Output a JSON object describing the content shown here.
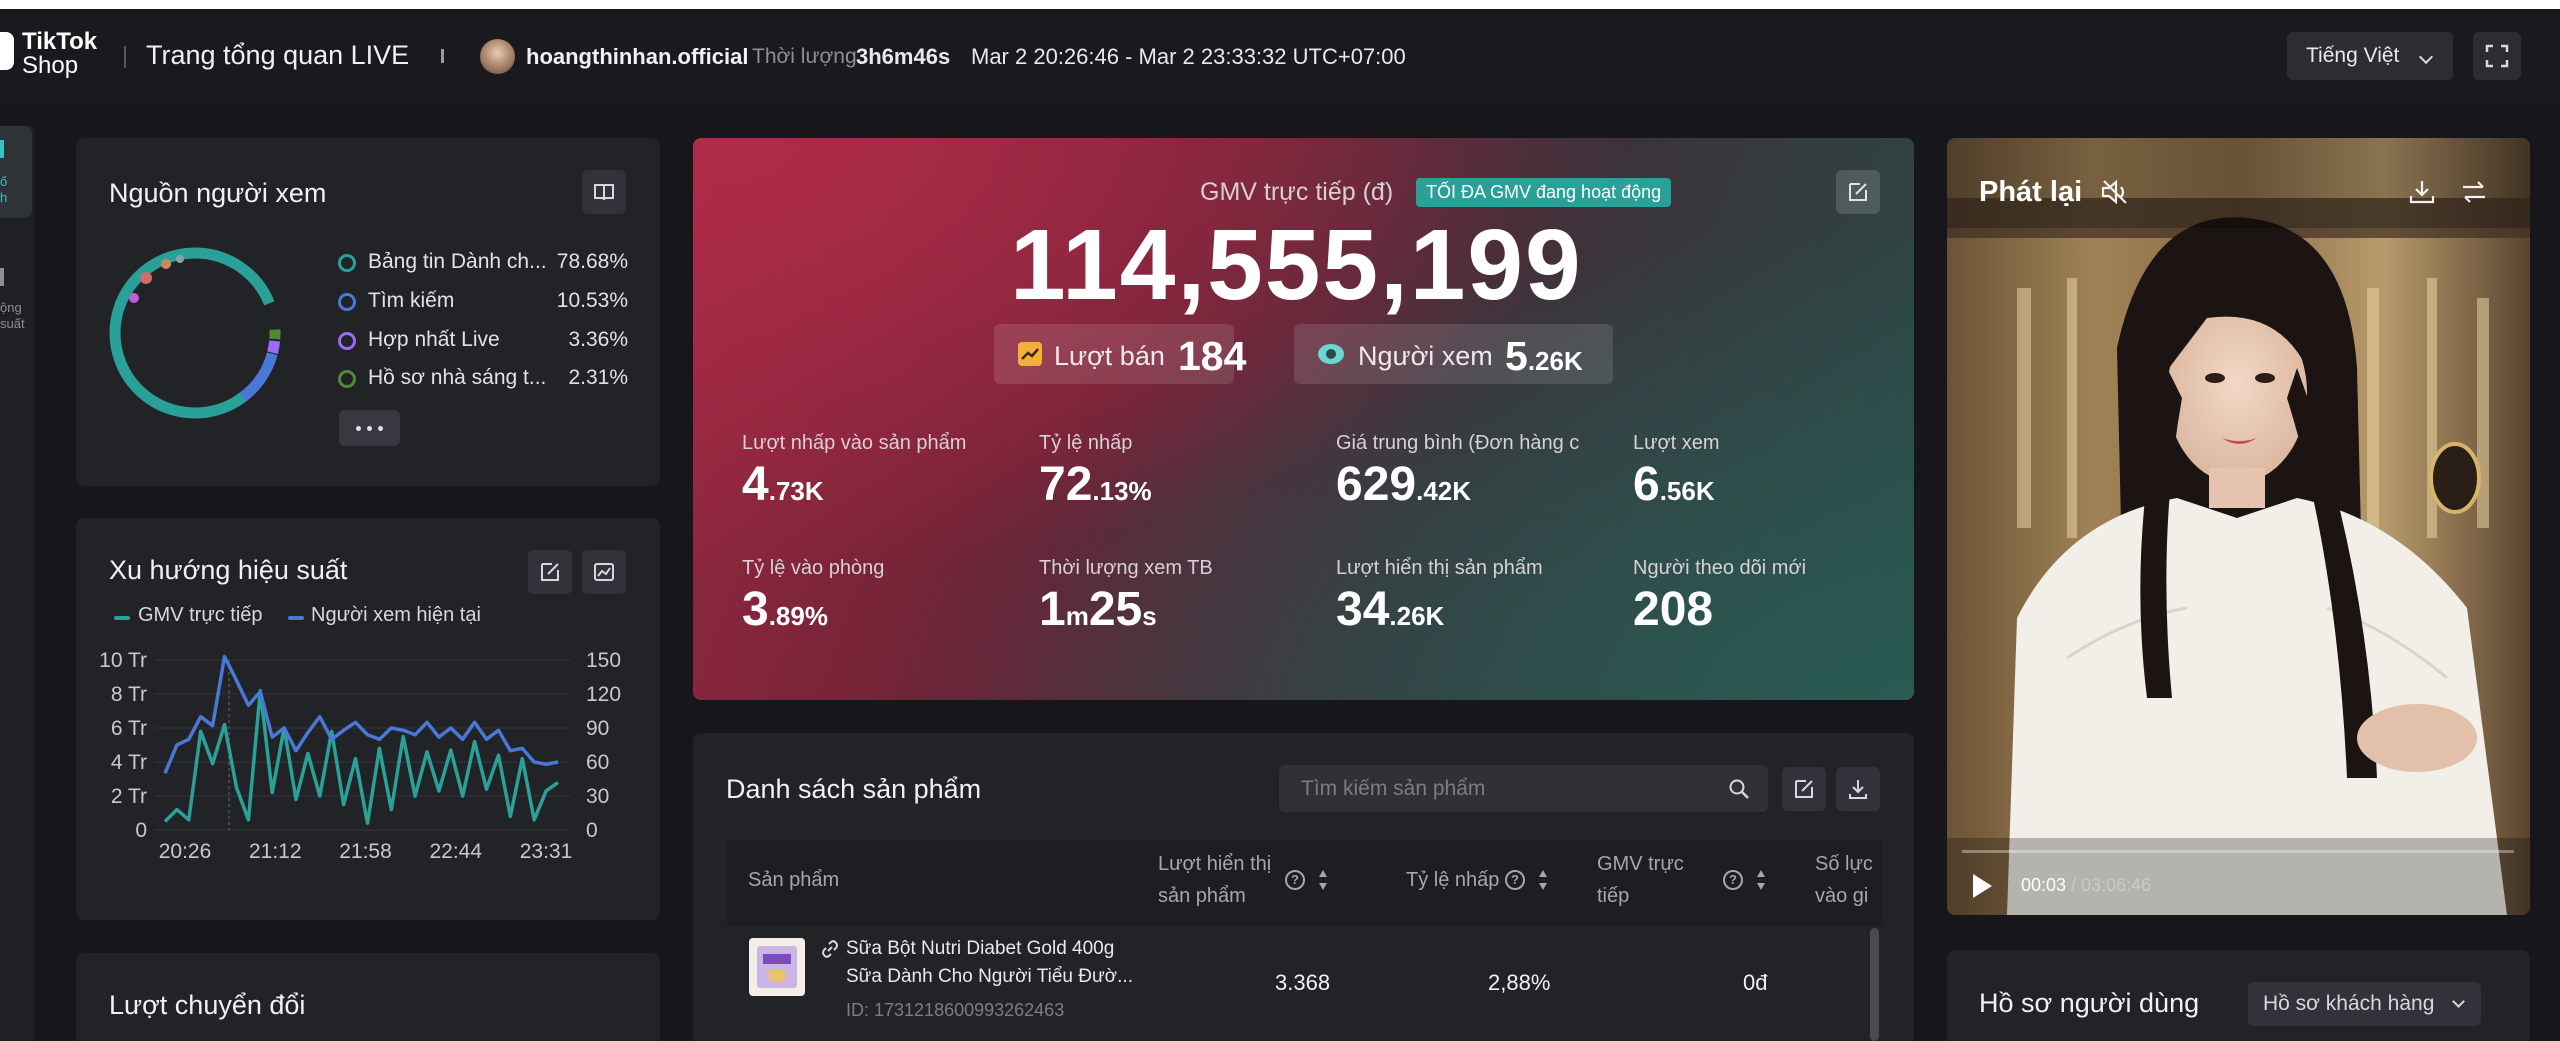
{
  "header": {
    "logo_line1": "TikTok",
    "logo_line2": "Shop",
    "page_title": "Trang tổng quan LIVE",
    "username": "hoangthinhan.official",
    "duration_label": "Thời lượng",
    "duration_value": "3h6m46s",
    "time_range": "Mar 2 20:26:46 - Mar 2 23:33:32 UTC+07:00",
    "language": "Tiếng Việt"
  },
  "left_nav": {
    "item1_line1": "ố",
    "item1_line2": "h",
    "item2_line1": "ộng",
    "item2_line2": "suất"
  },
  "viewer_source": {
    "title": "Nguồn người xem",
    "ring_color": "#2aa198",
    "items": [
      {
        "label": "Bảng tin Dành ch...",
        "pct": "78.68%",
        "color": "#2aa198"
      },
      {
        "label": "Tìm kiếm",
        "pct": "10.53%",
        "color": "#4a78d6"
      },
      {
        "label": "Hợp nhất Live",
        "pct": "3.36%",
        "color": "#9a6cf0"
      },
      {
        "label": "Hồ sơ nhà sáng t...",
        "pct": "2.31%",
        "color": "#4e8a3a"
      }
    ]
  },
  "trend": {
    "title": "Xu hướng hiệu suất",
    "legend_gmv": "GMV trực tiếp",
    "legend_viewers": "Người xem hiện tại"
  },
  "chart_data": {
    "type": "line",
    "x_ticks": [
      "20:26",
      "21:12",
      "21:58",
      "22:44",
      "23:31"
    ],
    "y_left_ticks": [
      "10 Tr",
      "8 Tr",
      "6 Tr",
      "4 Tr",
      "2 Tr",
      "0"
    ],
    "y_right_ticks": [
      "150",
      "120",
      "90",
      "60",
      "30",
      "0"
    ],
    "ylim_left": [
      0,
      10
    ],
    "ylim_right": [
      0,
      150
    ],
    "series": [
      {
        "name": "GMV trực tiếp",
        "color": "#2aa198",
        "axis": "left",
        "values": [
          0.5,
          1.2,
          0.6,
          5.8,
          3.9,
          6.2,
          2.5,
          0.6,
          8.2,
          2.2,
          6.0,
          1.8,
          4.5,
          2.0,
          5.8,
          1.5,
          4.2,
          0.4,
          4.8,
          1.2,
          5.5,
          2.0,
          4.6,
          2.3,
          4.7,
          2.0,
          5.2,
          2.4,
          4.4,
          0.8,
          4.2,
          0.6,
          2.3,
          2.8
        ]
      },
      {
        "name": "Người xem hiện tại",
        "color": "#4a78d6",
        "axis": "right",
        "values": [
          50,
          75,
          80,
          100,
          92,
          153,
          132,
          110,
          122,
          82,
          90,
          70,
          86,
          100,
          80,
          88,
          95,
          84,
          80,
          90,
          88,
          84,
          95,
          82,
          90,
          80,
          95,
          80,
          88,
          70,
          72,
          60,
          58,
          60
        ]
      }
    ]
  },
  "conversion": {
    "title": "Lượt chuyển đổi"
  },
  "gmv": {
    "label": "GMV trực tiếp (đ)",
    "badge": "TỐI ĐA GMV đang hoạt động",
    "value": "114,555,199",
    "sales_label": "Lượt bán",
    "sales_value": "184",
    "viewers_label": "Người xem",
    "viewers_main": "5",
    "viewers_suffix": ".26K"
  },
  "metrics": [
    {
      "label": "Lượt nhấp vào sản phẩm",
      "main": "4",
      "suffix": ".73K"
    },
    {
      "label": "Tỷ lệ nhấp",
      "main": "72",
      "suffix": ".13%"
    },
    {
      "label": "Giá trung bình (Đơn hàng c",
      "main": "629",
      "suffix": ".42K"
    },
    {
      "label": "Lượt xem",
      "main": "6",
      "suffix": ".56K"
    },
    {
      "label": "Tỷ lệ vào phòng",
      "main": "3",
      "suffix": ".89%"
    },
    {
      "label": "Thời lượng xem TB",
      "main": "1",
      "unit1": "m",
      "main2": "25",
      "unit2": "s"
    },
    {
      "label": "Lượt hiển thị sản phẩm",
      "main": "34",
      "suffix": ".26K"
    },
    {
      "label": "Người theo dõi mới",
      "main": "208",
      "suffix": ""
    }
  ],
  "products": {
    "title": "Danh sách sản phẩm",
    "search_placeholder": "Tìm kiếm sản phẩm",
    "columns": {
      "product": "Sản phẩm",
      "impressions_1": "Lượt hiển thị",
      "impressions_2": "sản phẩm",
      "ctr": "Tỷ lệ nhấp",
      "gmv_1": "GMV trực",
      "gmv_2": "tiếp",
      "entries_1": "Số lực",
      "entries_2": "vào gi"
    },
    "rows": [
      {
        "name1": "Sữa Bột Nutri Diabet Gold 400g",
        "name2": "Sữa Dành Cho Người Tiểu Đườ...",
        "id": "ID: 1731218600993262463",
        "impressions": "3.368",
        "ctr": "2,88%",
        "gmv": "0đ"
      }
    ]
  },
  "playback": {
    "title": "Phát lại",
    "time_current": "00:03",
    "time_total": " / 03:06:46"
  },
  "user_profile": {
    "title": "Hồ sơ người dùng",
    "dropdown": "Hồ sơ khách hàng"
  }
}
